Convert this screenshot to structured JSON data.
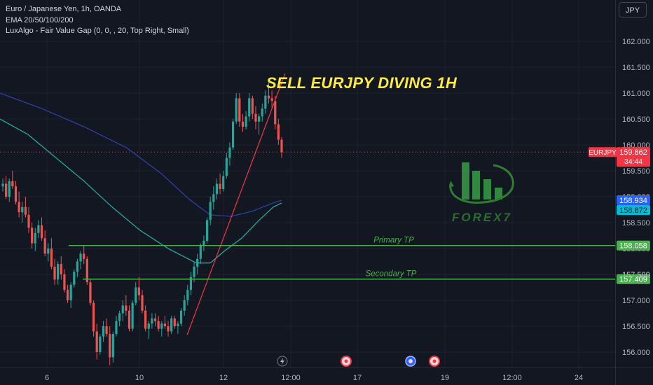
{
  "legend": {
    "symbol_line": "Euro / Japanese Yen, 1h, OANDA",
    "ema_line": "EMA 20/50/100/200",
    "fvg_line": "LuxAlgo - Fair Value Gap (0, 0, , 20, Top Right, Small)"
  },
  "toolbar": {
    "currency_button": "JPY"
  },
  "annotation": {
    "headline": "SELL EURJPY DIVING 1H"
  },
  "watermark": {
    "text": "FOREX7",
    "color": "#2e7d32"
  },
  "chart_data": {
    "type": "candlestick",
    "symbol": "EURJPY",
    "ylim": [
      155.76,
      162.45
    ],
    "y_ticks": [
      156.0,
      156.5,
      157.0,
      157.5,
      158.0,
      158.5,
      159.0,
      159.5,
      160.0,
      160.5,
      161.0,
      161.5,
      162.0
    ],
    "y_tick_labels": [
      "156.000",
      "156.500",
      "157.000",
      "157.500",
      "158.000",
      "158.500",
      "159.000",
      "159.500",
      "160.000",
      "160.500",
      "161.000",
      "161.500",
      "162.000"
    ],
    "x_tick_labels": [
      "6",
      "10",
      "12",
      "12:00",
      "17",
      "19",
      "12:00",
      "24"
    ],
    "candles": [
      [
        159.2,
        159.35,
        159.1,
        159.25
      ],
      [
        159.25,
        159.4,
        158.95,
        159.0
      ],
      [
        159.0,
        159.35,
        158.9,
        159.3
      ],
      [
        159.3,
        159.5,
        159.15,
        159.2
      ],
      [
        159.2,
        159.3,
        158.85,
        158.9
      ],
      [
        158.9,
        159.1,
        158.6,
        158.7
      ],
      [
        158.7,
        158.9,
        158.5,
        158.8
      ],
      [
        158.8,
        159.0,
        158.6,
        158.65
      ],
      [
        158.65,
        158.8,
        158.3,
        158.4
      ],
      [
        158.4,
        158.5,
        158.0,
        158.1
      ],
      [
        158.1,
        158.4,
        157.95,
        158.3
      ],
      [
        158.3,
        158.55,
        158.2,
        158.45
      ],
      [
        158.45,
        158.6,
        158.15,
        158.2
      ],
      [
        158.2,
        158.35,
        157.85,
        157.9
      ],
      [
        157.9,
        158.1,
        157.75,
        158.0
      ],
      [
        158.0,
        158.2,
        157.6,
        157.65
      ],
      [
        157.65,
        157.8,
        157.3,
        157.4
      ],
      [
        157.4,
        157.75,
        157.3,
        157.7
      ],
      [
        157.7,
        157.85,
        157.4,
        157.5
      ],
      [
        157.5,
        157.6,
        157.15,
        157.2
      ],
      [
        157.2,
        157.3,
        156.95,
        157.0
      ],
      [
        157.0,
        157.35,
        156.85,
        157.3
      ],
      [
        157.3,
        157.6,
        157.25,
        157.55
      ],
      [
        157.55,
        157.8,
        157.45,
        157.75
      ],
      [
        157.75,
        157.95,
        157.6,
        157.9
      ],
      [
        157.9,
        158.05,
        157.7,
        157.8
      ],
      [
        157.8,
        157.85,
        157.3,
        157.35
      ],
      [
        157.35,
        157.4,
        156.9,
        156.95
      ],
      [
        156.95,
        157.0,
        156.3,
        156.4
      ],
      [
        156.4,
        156.55,
        155.85,
        156.0
      ],
      [
        156.0,
        156.35,
        155.95,
        156.3
      ],
      [
        156.3,
        156.6,
        156.2,
        156.5
      ],
      [
        156.5,
        156.65,
        156.3,
        156.35
      ],
      [
        156.35,
        156.5,
        155.75,
        155.9
      ],
      [
        155.9,
        156.4,
        155.8,
        156.35
      ],
      [
        156.35,
        156.7,
        156.3,
        156.6
      ],
      [
        156.6,
        156.8,
        156.5,
        156.75
      ],
      [
        156.75,
        157.0,
        156.6,
        156.9
      ],
      [
        156.9,
        157.1,
        156.7,
        156.8
      ],
      [
        156.8,
        156.9,
        156.4,
        156.45
      ],
      [
        156.45,
        157.0,
        156.4,
        156.95
      ],
      [
        156.95,
        157.35,
        156.9,
        157.25
      ],
      [
        157.25,
        157.45,
        157.0,
        157.1
      ],
      [
        157.1,
        157.2,
        156.75,
        156.8
      ],
      [
        156.8,
        156.9,
        156.4,
        156.45
      ],
      [
        156.45,
        156.6,
        156.25,
        156.55
      ],
      [
        156.55,
        156.75,
        156.45,
        156.65
      ],
      [
        156.65,
        156.75,
        156.5,
        156.6
      ],
      [
        156.6,
        156.7,
        156.4,
        156.45
      ],
      [
        156.45,
        156.6,
        156.3,
        156.55
      ],
      [
        156.55,
        156.7,
        156.45,
        156.5
      ],
      [
        156.5,
        156.6,
        156.3,
        156.4
      ],
      [
        156.4,
        156.7,
        156.35,
        156.65
      ],
      [
        156.65,
        156.7,
        156.45,
        156.5
      ],
      [
        156.5,
        156.6,
        156.35,
        156.55
      ],
      [
        156.55,
        156.85,
        156.5,
        156.8
      ],
      [
        156.8,
        157.1,
        156.7,
        157.0
      ],
      [
        157.0,
        157.3,
        156.9,
        157.2
      ],
      [
        157.2,
        157.55,
        157.1,
        157.45
      ],
      [
        157.45,
        157.75,
        157.35,
        157.65
      ],
      [
        157.65,
        157.9,
        157.5,
        157.8
      ],
      [
        157.8,
        158.1,
        157.7,
        158.05
      ],
      [
        158.05,
        158.25,
        157.95,
        158.15
      ],
      [
        158.15,
        158.6,
        158.1,
        158.55
      ],
      [
        158.55,
        159.0,
        158.45,
        158.9
      ],
      [
        158.9,
        159.2,
        158.75,
        159.05
      ],
      [
        159.05,
        159.35,
        158.95,
        159.25
      ],
      [
        159.25,
        159.45,
        159.05,
        159.15
      ],
      [
        159.15,
        159.5,
        159.1,
        159.4
      ],
      [
        159.4,
        159.85,
        159.35,
        159.75
      ],
      [
        159.75,
        160.05,
        159.6,
        159.95
      ],
      [
        159.95,
        160.5,
        159.9,
        160.45
      ],
      [
        160.45,
        161.0,
        160.4,
        160.9
      ],
      [
        160.9,
        161.0,
        160.35,
        160.45
      ],
      [
        160.45,
        160.6,
        160.25,
        160.35
      ],
      [
        160.35,
        160.65,
        160.3,
        160.55
      ],
      [
        160.55,
        161.0,
        160.45,
        160.9
      ],
      [
        160.9,
        160.95,
        160.5,
        160.6
      ],
      [
        160.6,
        160.75,
        160.3,
        160.45
      ],
      [
        160.45,
        160.6,
        160.2,
        160.55
      ],
      [
        160.55,
        160.8,
        160.45,
        160.7
      ],
      [
        160.7,
        161.05,
        160.6,
        160.95
      ],
      [
        160.95,
        161.2,
        160.8,
        160.9
      ],
      [
        160.9,
        161.05,
        160.7,
        160.85
      ],
      [
        160.85,
        160.95,
        160.3,
        160.4
      ],
      [
        160.4,
        160.5,
        160.0,
        160.1
      ],
      [
        160.1,
        160.15,
        159.75,
        159.86
      ]
    ],
    "lines": [
      {
        "name": "EMA (teal)",
        "color": "#26a69a",
        "points": [
          [
            0,
            160.5
          ],
          [
            40,
            160.2
          ],
          [
            80,
            159.75
          ],
          [
            120,
            159.3
          ],
          [
            160,
            158.8
          ],
          [
            200,
            158.35
          ],
          [
            240,
            158.0
          ],
          [
            280,
            157.72
          ],
          [
            300,
            157.72
          ],
          [
            320,
            157.95
          ],
          [
            345,
            158.2
          ],
          [
            370,
            158.55
          ],
          [
            390,
            158.8
          ],
          [
            402,
            158.88
          ]
        ]
      },
      {
        "name": "EMA (dark blue)",
        "color": "#303f9f",
        "points": [
          [
            0,
            161.0
          ],
          [
            60,
            160.7
          ],
          [
            120,
            160.35
          ],
          [
            180,
            159.95
          ],
          [
            230,
            159.45
          ],
          [
            270,
            158.95
          ],
          [
            300,
            158.65
          ],
          [
            330,
            158.62
          ],
          [
            360,
            158.72
          ],
          [
            390,
            158.88
          ],
          [
            402,
            158.93
          ]
        ]
      }
    ],
    "trendline": {
      "from": [
        267,
        156.33
      ],
      "to": [
        407,
        161.38
      ]
    },
    "levels": [
      {
        "label": "Primary TP",
        "value": 158.058,
        "value_label": "158.058",
        "color": "#4caf50"
      },
      {
        "label": "Secondary TP",
        "value": 157.409,
        "value_label": "157.409",
        "color": "#4caf50"
      }
    ],
    "price_tags": [
      {
        "symbol": "EURJPY",
        "value": 159.862,
        "value_label": "159.862",
        "countdown": "34:44",
        "color": "#f23645"
      },
      {
        "value": 158.934,
        "value_label": "158.934",
        "color": "#2962ff"
      },
      {
        "value": 158.872,
        "value_label": "158.872",
        "color": "#00bcd4"
      }
    ],
    "partial_tick_labels": [
      "159.000",
      "157.500"
    ],
    "event_markers": [
      {
        "kind": "lightning",
        "x_index": 0
      },
      {
        "kind": "red-circle",
        "x_index": 1
      },
      {
        "kind": "blue-flag",
        "x_index": 2
      },
      {
        "kind": "red-circle",
        "x_index": 3
      }
    ]
  }
}
